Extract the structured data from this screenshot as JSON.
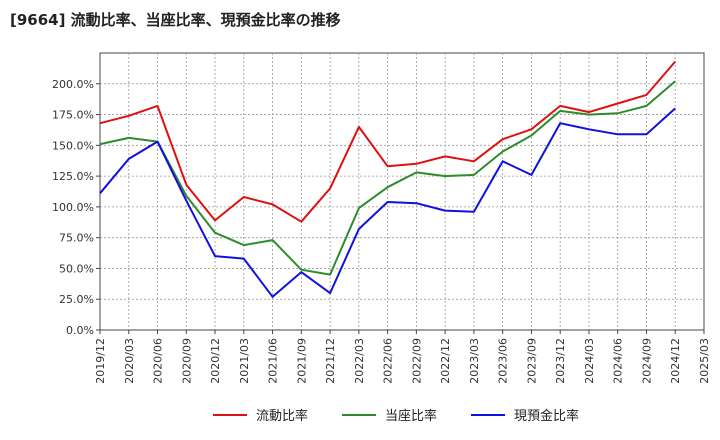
{
  "chart_data": {
    "type": "line",
    "title": "[9664]  流動比率、当座比率、現預金比率の推移",
    "x": [
      "2019/12",
      "2020/03",
      "2020/06",
      "2020/09",
      "2020/12",
      "2021/03",
      "2021/06",
      "2021/09",
      "2021/12",
      "2022/03",
      "2022/06",
      "2022/09",
      "2022/12",
      "2023/03",
      "2023/06",
      "2023/09",
      "2023/12",
      "2024/03",
      "2024/06",
      "2024/09",
      "2024/12"
    ],
    "x_ticks": [
      "2019/12",
      "2020/03",
      "2020/06",
      "2020/09",
      "2020/12",
      "2021/03",
      "2021/06",
      "2021/09",
      "2021/12",
      "2022/03",
      "2022/06",
      "2022/09",
      "2022/12",
      "2023/03",
      "2023/06",
      "2023/09",
      "2023/12",
      "2024/03",
      "2024/06",
      "2024/09",
      "2024/12",
      "2025/03"
    ],
    "y_ticks": [
      "0.0%",
      "25.0%",
      "50.0%",
      "75.0%",
      "100.0%",
      "125.0%",
      "150.0%",
      "175.0%",
      "200.0%"
    ],
    "ylim": [
      0,
      225
    ],
    "xlim_months": [
      "2019/12",
      "2025/03"
    ],
    "grid": true,
    "legend_position": "bottom",
    "series": [
      {
        "name": "流動比率",
        "color": "#dd1111",
        "values": [
          168,
          174,
          182,
          118,
          89,
          108,
          102,
          88,
          115,
          165,
          133,
          135,
          141,
          137,
          155,
          163,
          182,
          177,
          184,
          191,
          218
        ]
      },
      {
        "name": "当座比率",
        "color": "#2e8b2e",
        "values": [
          151,
          156,
          153,
          109,
          79,
          69,
          73,
          49,
          45,
          99,
          116,
          128,
          125,
          126,
          145,
          158,
          178,
          175,
          176,
          182,
          202
        ]
      },
      {
        "name": "現預金比率",
        "color": "#1111dd",
        "values": [
          111,
          139,
          153,
          105,
          60,
          58,
          27,
          47,
          30,
          82,
          104,
          103,
          97,
          96,
          137,
          126,
          168,
          163,
          159,
          159,
          180
        ]
      }
    ]
  }
}
